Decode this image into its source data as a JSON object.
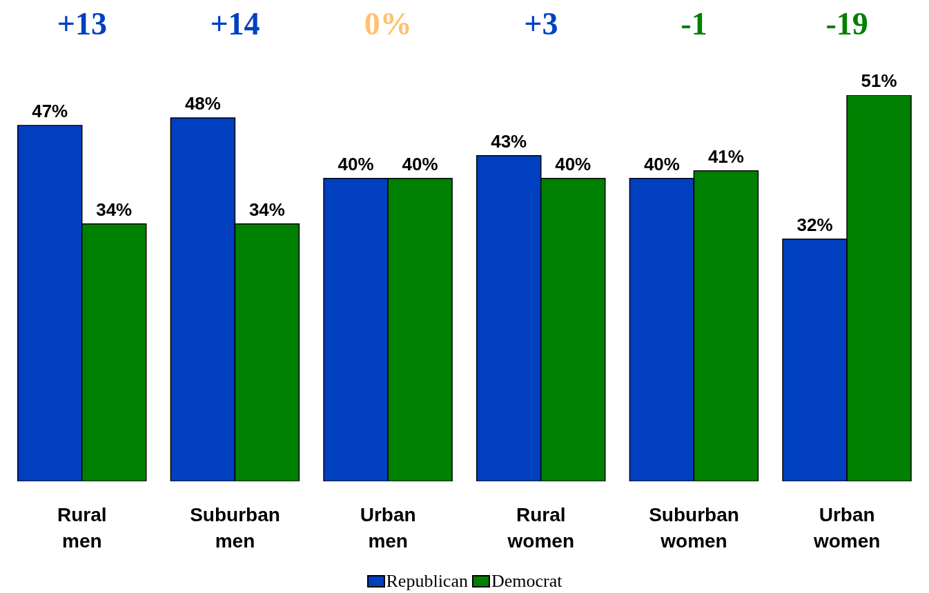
{
  "chart_data": {
    "type": "bar",
    "categories": [
      "Rural men",
      "Suburban men",
      "Urban men",
      "Rural women",
      "Suburban women",
      "Urban women"
    ],
    "series": [
      {
        "name": "Republican",
        "color": "#0040c0",
        "values": [
          47,
          48,
          40,
          43,
          40,
          32
        ],
        "value_labels": [
          "47%",
          "48%",
          "40%",
          "43%",
          "40%",
          "32%"
        ]
      },
      {
        "name": "Democrat",
        "color": "#008000",
        "values": [
          34,
          34,
          40,
          40,
          41,
          51
        ],
        "value_labels": [
          "34%",
          "34%",
          "40%",
          "40%",
          "41%",
          "51%"
        ]
      }
    ],
    "annotations": [
      "+13",
      "+14",
      "0%",
      "+3",
      "-1",
      "-19"
    ],
    "legend": "bottom",
    "grid": false
  }
}
